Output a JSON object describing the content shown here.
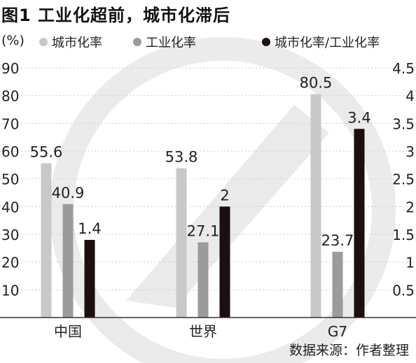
{
  "title": "图1  工业化超前，城市化滞后",
  "unit_label": "(%)",
  "source": "数据来源：作者整理",
  "chart_data": {
    "type": "bar",
    "categories": [
      "中国",
      "世界",
      "G7"
    ],
    "series": [
      {
        "name": "城市化率",
        "values": [
          55.6,
          53.8,
          80.5
        ],
        "axis": "left",
        "color": "#c8c8c8",
        "labels": [
          "55.6",
          "53.8",
          "80.5"
        ]
      },
      {
        "name": "工业化率",
        "values": [
          40.9,
          27.1,
          23.7
        ],
        "axis": "left",
        "color": "#9b9b9b",
        "labels": [
          "40.9",
          "27.1",
          "23.7"
        ]
      },
      {
        "name": "城市化率/工业化率",
        "values": [
          1.4,
          2,
          3.4
        ],
        "axis": "right",
        "color": "#1b0f10",
        "labels": [
          "1.4",
          "2",
          "3.4"
        ]
      }
    ],
    "ylim": [
      0,
      90
    ],
    "y2lim": [
      0,
      4.5
    ],
    "yticks": [
      "10",
      "20",
      "30",
      "40",
      "50",
      "60",
      "70",
      "80",
      "90"
    ],
    "y2ticks": [
      "0.5",
      "1",
      "1.5",
      "2",
      "2.5",
      "3",
      "3.5",
      "4",
      "4.5"
    ],
    "grid": "horizontal-dashed",
    "legend": "top"
  }
}
